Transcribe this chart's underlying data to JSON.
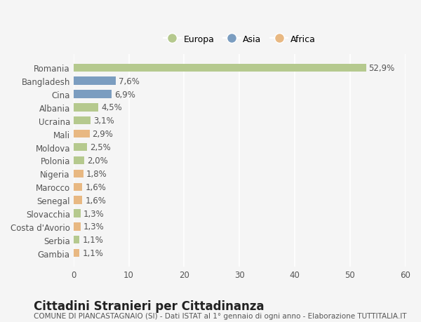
{
  "countries": [
    "Romania",
    "Bangladesh",
    "Cina",
    "Albania",
    "Ucraina",
    "Mali",
    "Moldova",
    "Polonia",
    "Nigeria",
    "Marocco",
    "Senegal",
    "Slovacchia",
    "Costa d'Avorio",
    "Serbia",
    "Gambia"
  ],
  "values": [
    52.9,
    7.6,
    6.9,
    4.5,
    3.1,
    2.9,
    2.5,
    2.0,
    1.8,
    1.6,
    1.6,
    1.3,
    1.3,
    1.1,
    1.1
  ],
  "labels": [
    "52,9%",
    "7,6%",
    "6,9%",
    "4,5%",
    "3,1%",
    "2,9%",
    "2,5%",
    "2,0%",
    "1,8%",
    "1,6%",
    "1,6%",
    "1,3%",
    "1,3%",
    "1,1%",
    "1,1%"
  ],
  "continents": [
    "Europa",
    "Asia",
    "Asia",
    "Europa",
    "Europa",
    "Africa",
    "Europa",
    "Europa",
    "Africa",
    "Africa",
    "Africa",
    "Europa",
    "Africa",
    "Europa",
    "Africa"
  ],
  "colors": {
    "Europa": "#b5c98e",
    "Asia": "#7b9dc0",
    "Africa": "#e8b882"
  },
  "background_color": "#f5f5f5",
  "title": "Cittadini Stranieri per Cittadinanza",
  "subtitle": "COMUNE DI PIANCASTAGNAIO (SI) - Dati ISTAT al 1° gennaio di ogni anno - Elaborazione TUTTITALIA.IT",
  "xlim": [
    0,
    60
  ],
  "xticks": [
    0,
    10,
    20,
    30,
    40,
    50,
    60
  ],
  "grid_color": "#ffffff",
  "bar_height": 0.6,
  "label_fontsize": 8.5,
  "tick_fontsize": 8.5,
  "title_fontsize": 12,
  "subtitle_fontsize": 7.5
}
